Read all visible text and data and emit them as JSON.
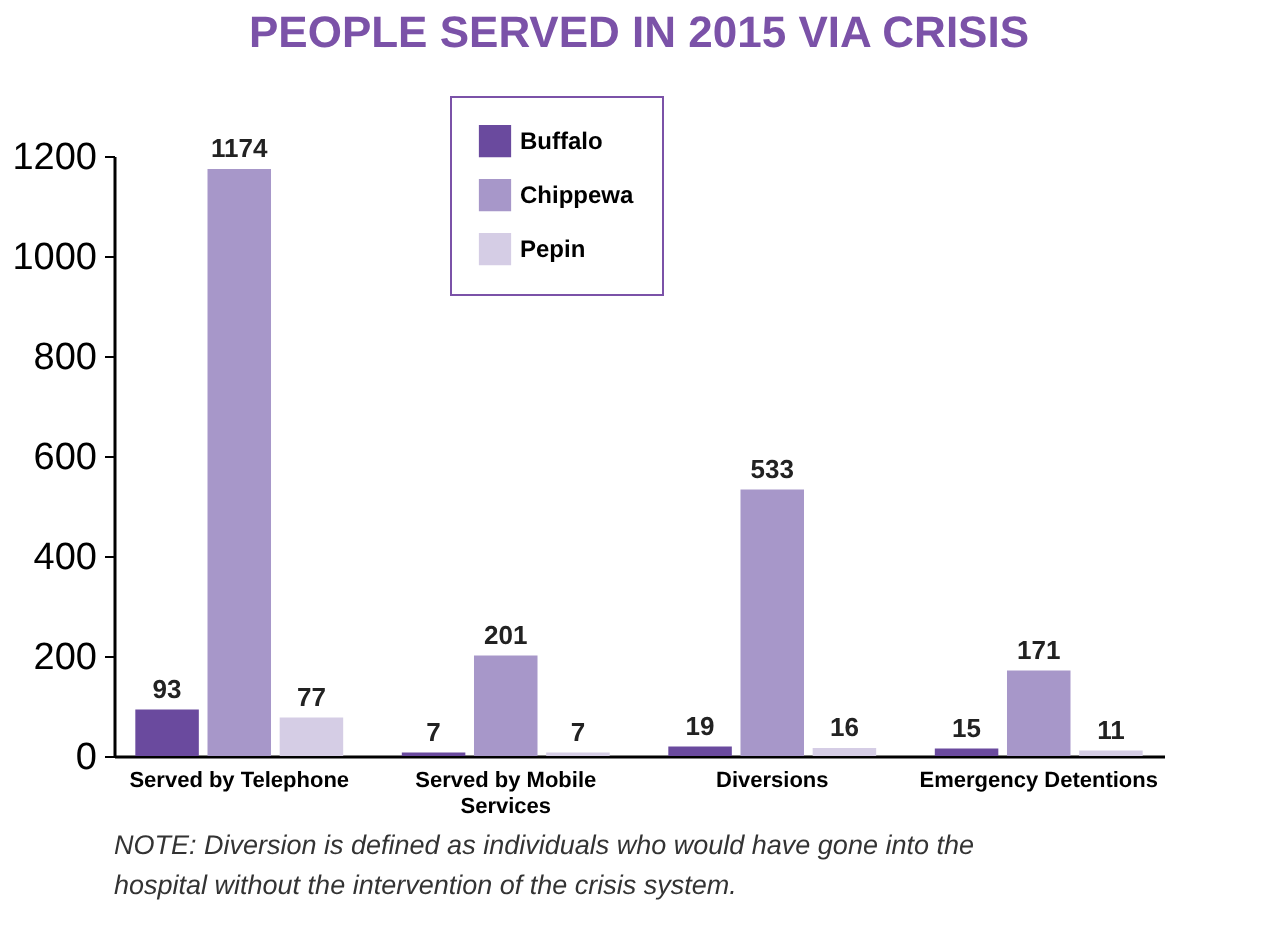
{
  "chart_data": {
    "type": "bar",
    "title": "PEOPLE SERVED IN 2015 VIA CRISIS",
    "categories": [
      "Served by Telephone",
      "Served by Mobile Services",
      "Diversions",
      "Emergency Detentions"
    ],
    "series": [
      {
        "name": "Buffalo",
        "color": "#6a4a9e",
        "values": [
          93,
          7,
          19,
          15
        ]
      },
      {
        "name": "Chippewa",
        "color": "#a797c9",
        "values": [
          1174,
          201,
          533,
          171
        ]
      },
      {
        "name": "Pepin",
        "color": "#d5cde5",
        "values": [
          77,
          7,
          16,
          11
        ]
      }
    ],
    "ylim": [
      0,
      1200
    ],
    "yticks": [
      0,
      200,
      400,
      600,
      800,
      1000,
      1200
    ],
    "grid": false,
    "legend": "top",
    "data_labels": true,
    "annotations": [
      "NOTE:  Diversion is defined as individuals who would have gone into the hospital without the intervention of the crisis system."
    ]
  }
}
